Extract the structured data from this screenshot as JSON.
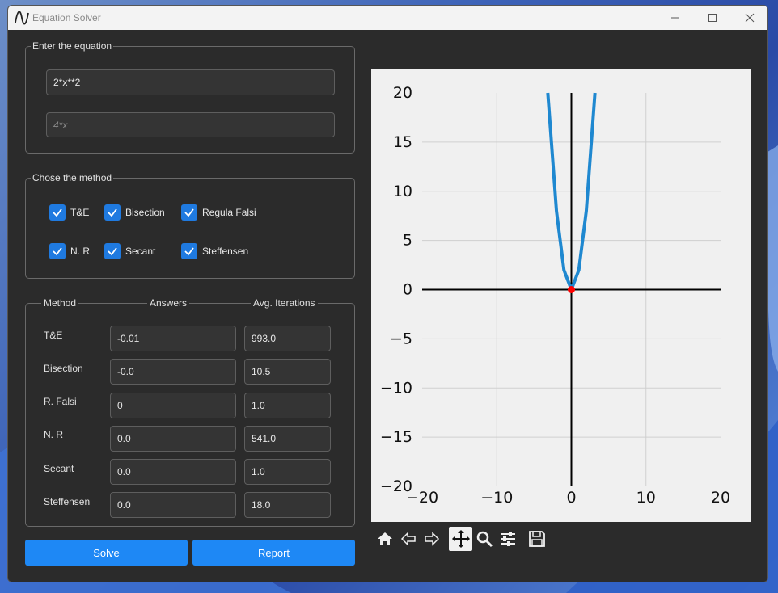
{
  "window": {
    "title": "Equation Solver",
    "controls": {
      "minimize": "—",
      "maximize": "☐",
      "close": "✕"
    }
  },
  "equation": {
    "legend": "Enter the equation",
    "field1_value": "2*x**2",
    "field2_placeholder": "4*x"
  },
  "methods": {
    "legend": "Chose the method",
    "items": [
      {
        "label": "T&E",
        "checked": true
      },
      {
        "label": "Bisection",
        "checked": true
      },
      {
        "label": "Regula Falsi",
        "checked": true
      },
      {
        "label": "N. R",
        "checked": true
      },
      {
        "label": "Secant",
        "checked": true
      },
      {
        "label": "Steffensen",
        "checked": true
      }
    ]
  },
  "results": {
    "headers": {
      "method": "Method",
      "answers": "Answers",
      "iterations": "Avg. Iterations"
    },
    "rows": [
      {
        "method": "T&E",
        "answer": "-0.01",
        "iterations": "993.0"
      },
      {
        "method": "Bisection",
        "answer": "-0.0",
        "iterations": "10.5"
      },
      {
        "method": "R. Falsi",
        "answer": "0",
        "iterations": "1.0"
      },
      {
        "method": "N. R",
        "answer": "0.0",
        "iterations": "541.0"
      },
      {
        "method": "Secant",
        "answer": "0.0",
        "iterations": "1.0"
      },
      {
        "method": "Steffensen",
        "answer": "0.0",
        "iterations": "18.0"
      }
    ]
  },
  "buttons": {
    "solve": "Solve",
    "report": "Report"
  },
  "toolbar": {
    "icons": [
      "home-icon",
      "back-icon",
      "forward-icon",
      "pan-icon",
      "zoom-icon",
      "configure-icon",
      "save-icon"
    ],
    "active": "pan-icon"
  },
  "colors": {
    "accent": "#1e88f5",
    "curve": "#1f88d0",
    "root": "#ff0000",
    "plot_bg": "#f0f0f0"
  },
  "chart_data": {
    "type": "line",
    "title": "",
    "xlabel": "",
    "ylabel": "",
    "xlim": [
      -20,
      20
    ],
    "ylim": [
      -20,
      20
    ],
    "xticks": [
      "−20",
      "−10",
      "0",
      "10",
      "20"
    ],
    "yticks": [
      "20",
      "15",
      "10",
      "5",
      "0",
      "−5",
      "−10",
      "−15",
      "−20"
    ],
    "grid": true,
    "series": [
      {
        "x": [
          -3.16,
          -2,
          -1,
          0,
          1,
          2,
          3.16
        ],
        "y": [
          20,
          8,
          2,
          0,
          2,
          8,
          20
        ]
      }
    ],
    "root": {
      "x": 0,
      "y": 0
    }
  }
}
